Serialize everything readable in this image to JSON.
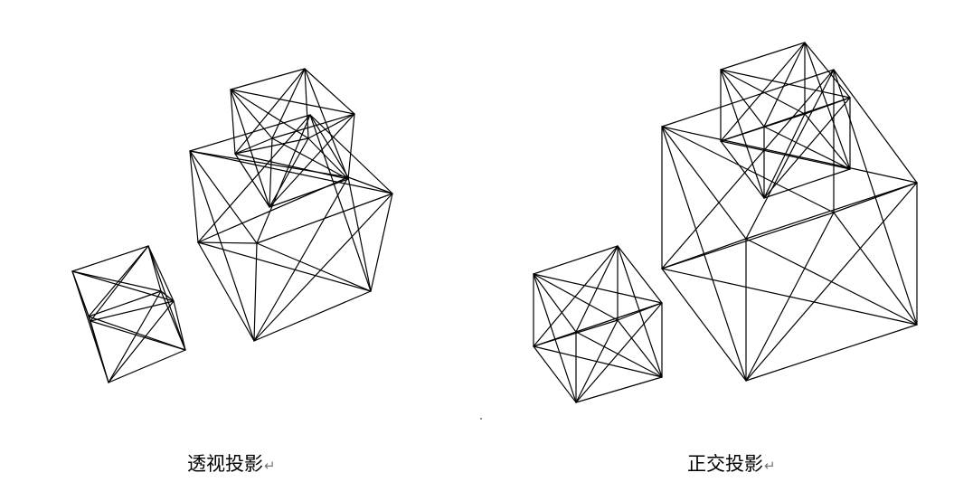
{
  "captions": {
    "left": "透视投影",
    "right": "正交投影",
    "paragraph_mark": "↵"
  },
  "figures": {
    "left": {
      "projection": "perspective",
      "cubes": 3
    },
    "right": {
      "projection": "orthographic",
      "cubes": 3
    }
  },
  "colors": {
    "line": "#000000",
    "background": "#ffffff"
  }
}
